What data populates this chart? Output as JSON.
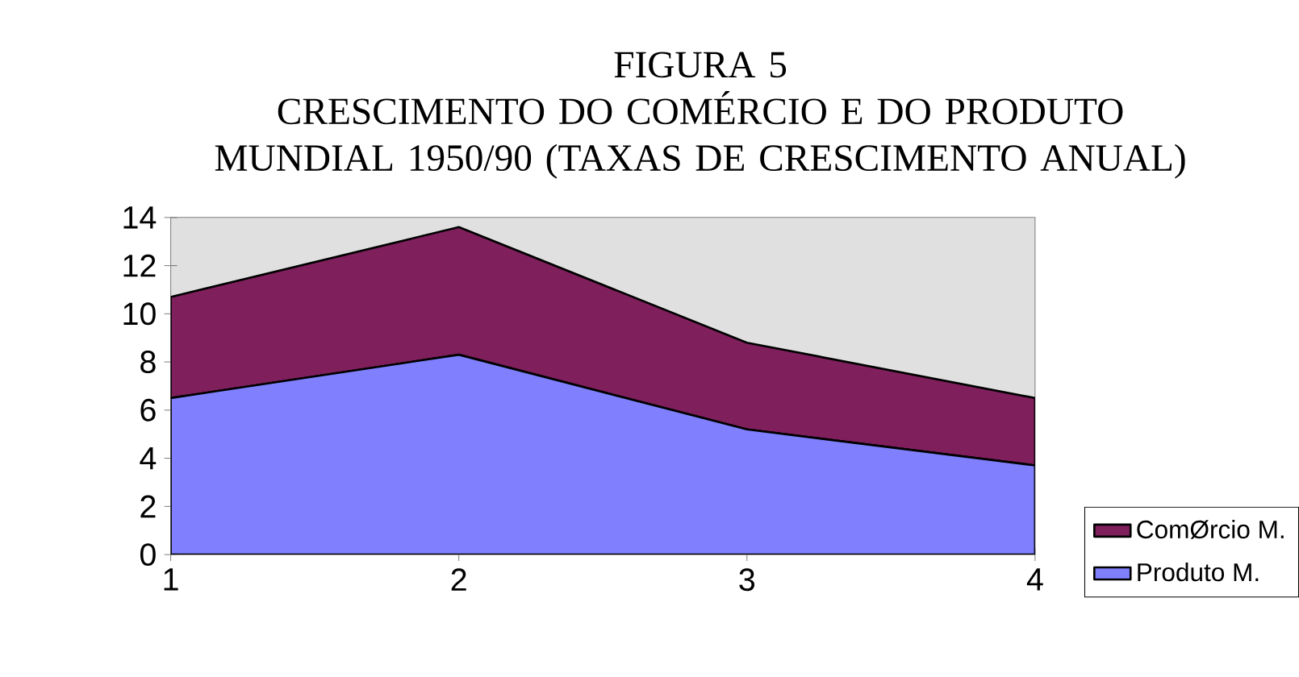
{
  "chart_data": {
    "type": "area",
    "title": "FIGURA 5",
    "subtitle": "CRESCIMENTO DO COMÉRCIO E DO PRODUTO MUNDIAL 1950/90 (TAXAS DE CRESCIMENTO ANUAL)",
    "categories": [
      "1",
      "2",
      "3",
      "4"
    ],
    "series": [
      {
        "name": "Produto M.",
        "color": "#8080ff",
        "values": [
          6.5,
          8.3,
          5.2,
          3.7
        ]
      },
      {
        "name": "ComØrcio M.",
        "color": "#7f1f5c",
        "values": [
          4.2,
          5.3,
          3.6,
          2.8
        ]
      }
    ],
    "stacked": true,
    "ylim": [
      0,
      14
    ],
    "yticks": [
      0,
      2,
      4,
      6,
      8,
      10,
      12,
      14
    ],
    "legend": "right"
  }
}
